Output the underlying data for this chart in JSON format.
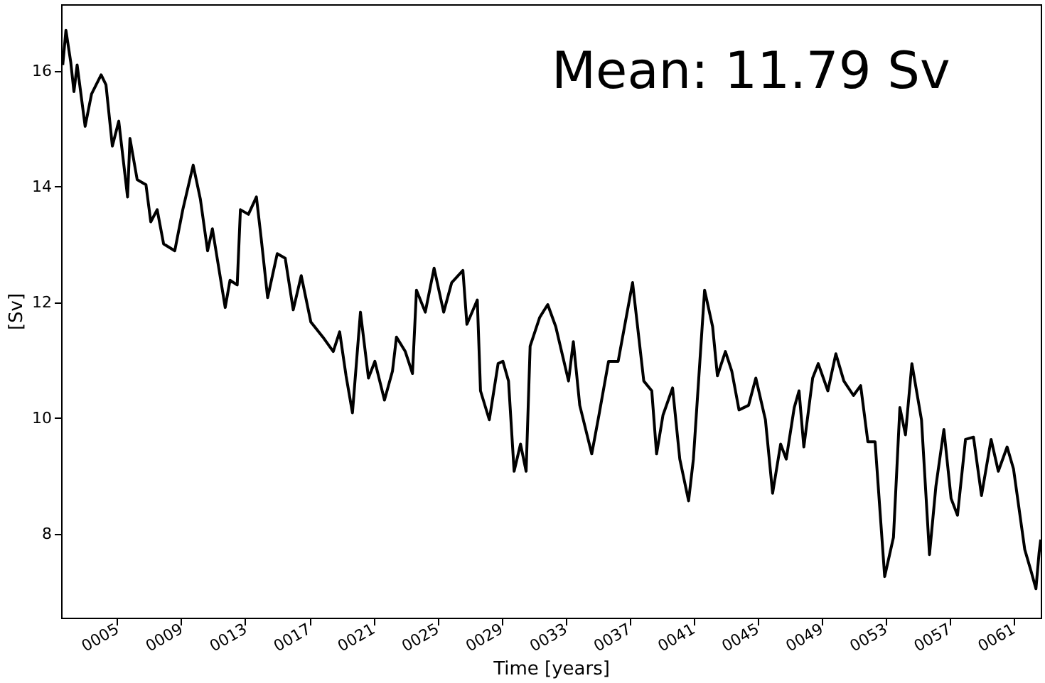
{
  "chart_data": {
    "type": "line",
    "xlabel": "Time [years]",
    "ylabel": "[Sv]",
    "annotations": [
      "Mean: 11.79 Sv"
    ],
    "x": [
      1.6,
      1.8,
      2.1,
      2.3,
      2.5,
      3.0,
      3.4,
      4.0,
      4.3,
      4.7,
      5.1,
      5.65,
      5.8,
      6.25,
      6.8,
      7.1,
      7.5,
      7.9,
      8.6,
      9.1,
      9.75,
      10.2,
      10.65,
      10.95,
      11.75,
      12.05,
      12.5,
      12.7,
      13.2,
      13.7,
      14.0,
      14.4,
      15.0,
      15.5,
      16.0,
      16.5,
      17.1,
      17.85,
      18.5,
      18.9,
      19.3,
      19.7,
      20.2,
      20.7,
      21.1,
      21.7,
      22.2,
      22.45,
      23.0,
      23.45,
      23.7,
      24.25,
      24.8,
      25.4,
      25.9,
      26.6,
      26.85,
      27.5,
      27.7,
      28.25,
      28.8,
      29.1,
      29.45,
      29.8,
      30.2,
      30.55,
      30.8,
      31.4,
      31.9,
      32.4,
      33.2,
      33.5,
      33.9,
      34.65,
      35.1,
      35.7,
      36.3,
      37.2,
      37.9,
      38.4,
      38.7,
      39.1,
      39.7,
      40.15,
      40.7,
      41.0,
      41.7,
      42.2,
      42.5,
      43.0,
      43.4,
      43.85,
      44.45,
      44.9,
      45.5,
      45.95,
      46.45,
      46.8,
      47.3,
      47.6,
      47.9,
      48.45,
      48.8,
      49.4,
      49.9,
      50.4,
      51.0,
      51.45,
      51.9,
      52.35,
      52.95,
      53.5,
      53.9,
      54.25,
      54.65,
      55.25,
      55.75,
      56.15,
      56.65,
      57.1,
      57.5,
      58.0,
      58.5,
      59.0,
      59.6,
      60.05,
      60.6,
      61.0,
      61.7,
      62.1,
      62.4,
      62.6,
      62.7
    ],
    "series": [
      {
        "color": "#000000",
        "values": [
          16.1,
          16.7,
          16.15,
          15.64,
          16.1,
          15.04,
          15.6,
          15.93,
          15.76,
          14.7,
          15.13,
          13.82,
          14.83,
          14.12,
          14.03,
          13.39,
          13.6,
          13.01,
          12.89,
          13.6,
          14.37,
          13.78,
          12.89,
          13.27,
          11.91,
          12.38,
          12.3,
          13.6,
          13.52,
          13.82,
          13.1,
          12.08,
          12.84,
          12.76,
          11.87,
          12.46,
          11.66,
          11.4,
          11.15,
          11.49,
          10.73,
          10.09,
          11.83,
          10.69,
          10.98,
          10.31,
          10.81,
          11.4,
          11.15,
          10.77,
          12.21,
          11.83,
          12.59,
          11.83,
          12.34,
          12.55,
          11.62,
          12.04,
          10.47,
          9.97,
          10.94,
          10.98,
          10.64,
          9.08,
          9.55,
          9.08,
          11.24,
          11.74,
          11.96,
          11.58,
          10.64,
          11.32,
          10.22,
          9.38,
          10.05,
          10.98,
          10.98,
          12.34,
          10.64,
          10.47,
          9.38,
          10.05,
          10.52,
          9.29,
          8.57,
          9.29,
          12.21,
          11.58,
          10.73,
          11.15,
          10.81,
          10.14,
          10.22,
          10.69,
          9.97,
          8.7,
          9.55,
          9.29,
          10.18,
          10.47,
          9.5,
          10.69,
          10.94,
          10.47,
          11.11,
          10.64,
          10.39,
          10.56,
          9.59,
          9.59,
          7.26,
          7.94,
          10.18,
          9.71,
          10.94,
          9.97,
          7.64,
          8.82,
          9.8,
          8.61,
          8.32,
          9.63,
          9.67,
          8.66,
          9.63,
          9.08,
          9.5,
          9.12,
          7.73,
          7.35,
          7.05,
          7.68,
          7.9
        ]
      }
    ],
    "xlim": [
      1.5,
      62.7
    ],
    "xticks": [
      {
        "value": 5,
        "label": "0005"
      },
      {
        "value": 9,
        "label": "0009"
      },
      {
        "value": 13,
        "label": "0013"
      },
      {
        "value": 17,
        "label": "0017"
      },
      {
        "value": 21,
        "label": "0021"
      },
      {
        "value": 25,
        "label": "0025"
      },
      {
        "value": 29,
        "label": "0029"
      },
      {
        "value": 33,
        "label": "0033"
      },
      {
        "value": 37,
        "label": "0037"
      },
      {
        "value": 41,
        "label": "0041"
      },
      {
        "value": 45,
        "label": "0045"
      },
      {
        "value": 49,
        "label": "0049"
      },
      {
        "value": 53,
        "label": "0053"
      },
      {
        "value": 57,
        "label": "0057"
      },
      {
        "value": 61,
        "label": "0061"
      }
    ],
    "ylim": [
      6.55,
      17.15
    ],
    "yticks": [
      8,
      10,
      12,
      14,
      16
    ],
    "grid": false,
    "line_style": "solid",
    "marker": "none"
  }
}
